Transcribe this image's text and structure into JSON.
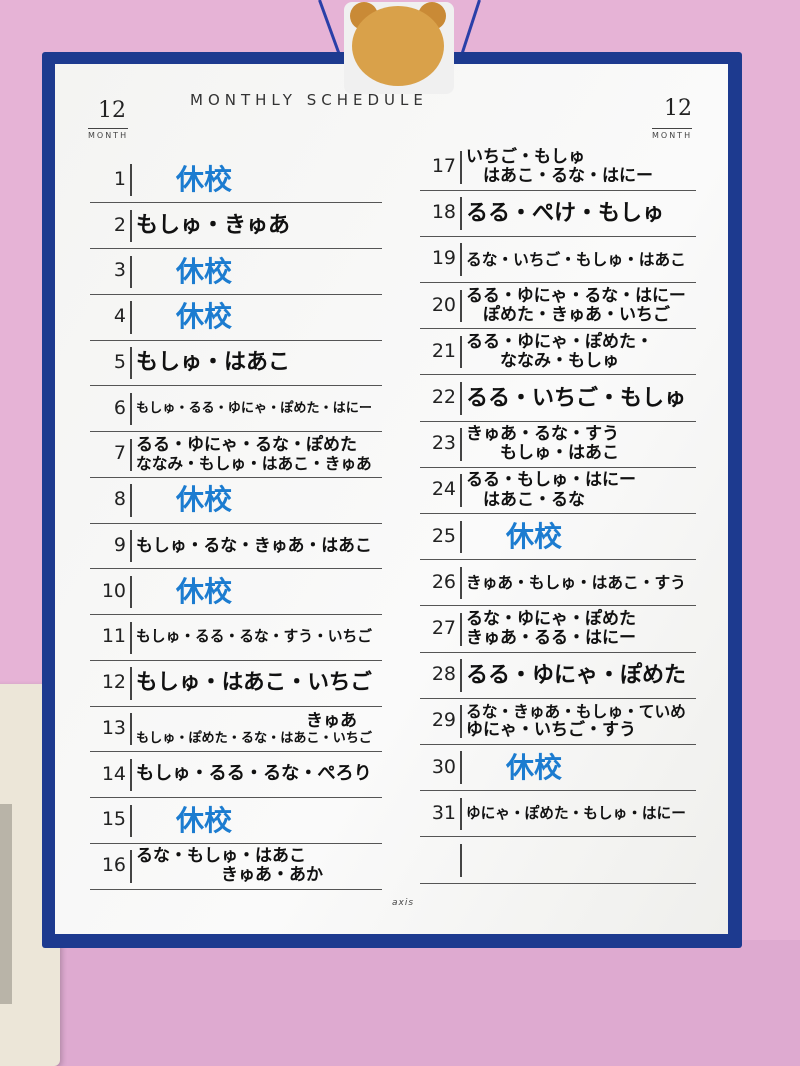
{
  "board": {
    "title": "MONTHLY SCHEDULE",
    "month_left": "12",
    "month_right": "12",
    "month_label": "MONTH",
    "brand": "axis",
    "holiday_color": "#1c7cd0",
    "frame_color": "#1d3a8f",
    "wall_color": "#e6b3d6"
  },
  "left_column": [
    {
      "day": "1",
      "lines": [
        "休校"
      ],
      "holiday": true
    },
    {
      "day": "2",
      "lines": [
        "もしゅ・きゅあ"
      ]
    },
    {
      "day": "3",
      "lines": [
        "休校"
      ],
      "holiday": true
    },
    {
      "day": "4",
      "lines": [
        "休校"
      ],
      "holiday": true
    },
    {
      "day": "5",
      "lines": [
        "もしゅ・はあこ"
      ]
    },
    {
      "day": "6",
      "lines": [
        "もしゅ・るる・ゆにゃ・ぽめた・はにー"
      ]
    },
    {
      "day": "7",
      "lines": [
        "るる・ゆにゃ・るな・ぽめた",
        "ななみ・もしゅ・はあこ・きゅあ"
      ]
    },
    {
      "day": "8",
      "lines": [
        "休校"
      ],
      "holiday": true
    },
    {
      "day": "9",
      "lines": [
        "もしゅ・るな・きゅあ・はあこ"
      ]
    },
    {
      "day": "10",
      "lines": [
        "休校"
      ],
      "holiday": true
    },
    {
      "day": "11",
      "lines": [
        "もしゅ・るる・るな・すう・いちご"
      ]
    },
    {
      "day": "12",
      "lines": [
        "もしゅ・はあこ・いちご"
      ]
    },
    {
      "day": "13",
      "lines": [
        "　　　　　　　　　　きゅあ",
        "もしゅ・ぽめた・るな・はあこ・いちご"
      ]
    },
    {
      "day": "14",
      "lines": [
        "もしゅ・るる・るな・ぺろり"
      ]
    },
    {
      "day": "15",
      "lines": [
        "休校"
      ],
      "holiday": true
    },
    {
      "day": "16",
      "lines": [
        "るな・もしゅ・はあこ",
        "　　　　　きゅあ・あか"
      ]
    }
  ],
  "right_column": [
    {
      "day": "17",
      "lines": [
        "いちご・もしゅ",
        "　はあこ・るな・はにー"
      ]
    },
    {
      "day": "18",
      "lines": [
        "るる・ぺけ・もしゅ"
      ]
    },
    {
      "day": "19",
      "lines": [
        "るな・いちご・もしゅ・はあこ"
      ]
    },
    {
      "day": "20",
      "lines": [
        "るる・ゆにゃ・るな・はにー",
        "　ぽめた・きゅあ・いちご"
      ]
    },
    {
      "day": "21",
      "lines": [
        "るる・ゆにゃ・ぽめた・",
        "　　ななみ・もしゅ"
      ]
    },
    {
      "day": "22",
      "lines": [
        "るる・いちご・もしゅ"
      ]
    },
    {
      "day": "23",
      "lines": [
        "きゅあ・るな・すう",
        "　　もしゅ・はあこ"
      ]
    },
    {
      "day": "24",
      "lines": [
        "るる・もしゅ・はにー",
        "　はあこ・るな"
      ]
    },
    {
      "day": "25",
      "lines": [
        "休校"
      ],
      "holiday": true
    },
    {
      "day": "26",
      "lines": [
        "きゅあ・もしゅ・はあこ・すう"
      ]
    },
    {
      "day": "27",
      "lines": [
        "るな・ゆにゃ・ぽめた",
        "きゅあ・るる・はにー"
      ]
    },
    {
      "day": "28",
      "lines": [
        "るる・ゆにゃ・ぽめた"
      ]
    },
    {
      "day": "29",
      "lines": [
        "るな・きゅあ・もしゅ・ていめ",
        "ゆにゃ・いちご・すう"
      ]
    },
    {
      "day": "30",
      "lines": [
        "休校"
      ],
      "holiday": true
    },
    {
      "day": "31",
      "lines": [
        "ゆにゃ・ぽめた・もしゅ・はにー"
      ]
    },
    {
      "day": "",
      "lines": []
    }
  ]
}
